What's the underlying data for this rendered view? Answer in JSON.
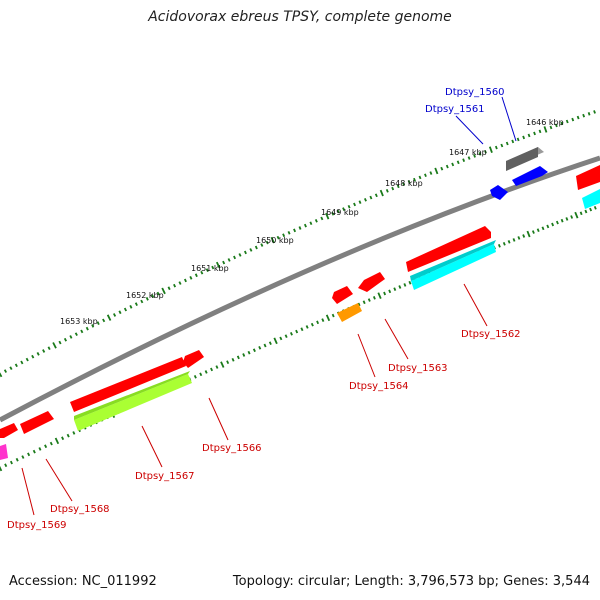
{
  "title": "Acidovorax ebreus TPSY, complete genome",
  "accession": "Accession: NC_011992",
  "topology": "Topology: circular; Length: 3,796,573 bp; Genes: 3,544",
  "ruler_labels": [
    "1646 kbp",
    "1647 kbp",
    "1648 kbp",
    "1649 kbp",
    "1650 kbp",
    "1651 kbp",
    "1652 kbp",
    "1653 kbp"
  ],
  "colors": {
    "backbone": "#808080",
    "ruler_ticks": "#1a7a1a",
    "label_forward": "#0000cc",
    "label_reverse": "#cc0000",
    "gene_red": "#ff0000",
    "gene_blue": "#0000ff",
    "gene_gray": "#707070",
    "gene_cyan": "#00ffff",
    "gene_lime": "#aaff33",
    "gene_orange": "#ff9900",
    "gene_magenta": "#ff33cc"
  },
  "genes": [
    {
      "id": "Dtpsy_1560",
      "strand": "forward"
    },
    {
      "id": "Dtpsy_1561",
      "strand": "forward"
    },
    {
      "id": "Dtpsy_1562",
      "strand": "reverse"
    },
    {
      "id": "Dtpsy_1563",
      "strand": "reverse"
    },
    {
      "id": "Dtpsy_1564",
      "strand": "reverse"
    },
    {
      "id": "Dtpsy_1566",
      "strand": "reverse"
    },
    {
      "id": "Dtpsy_1567",
      "strand": "reverse"
    },
    {
      "id": "Dtpsy_1568",
      "strand": "reverse"
    },
    {
      "id": "Dtpsy_1569",
      "strand": "reverse"
    }
  ]
}
